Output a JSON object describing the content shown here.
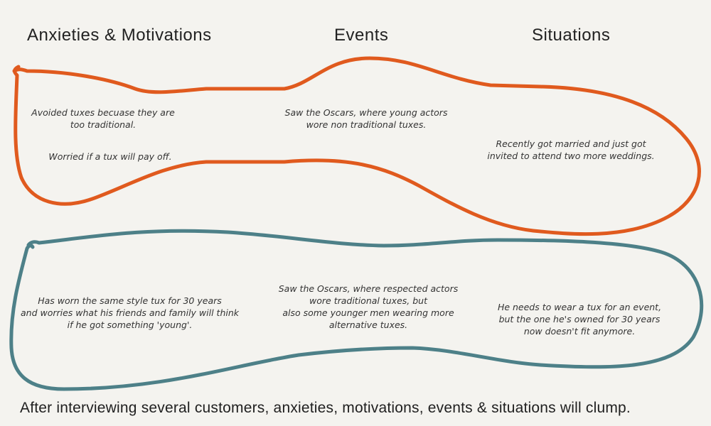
{
  "headers": {
    "anxieties": "Anxieties & Motivations",
    "events": "Events",
    "situations": "Situations"
  },
  "orange_cluster": {
    "color": "#e05a1e",
    "anxieties": {
      "line1": "Avoided tuxes becuase they are",
      "line2": "too traditional.",
      "line3": "Worried if a tux will pay off."
    },
    "events": {
      "line1": "Saw the Oscars, where young actors",
      "line2": "wore non traditional tuxes."
    },
    "situations": {
      "line1": "Recently got married and just got",
      "line2": "invited to attend two more weddings."
    }
  },
  "teal_cluster": {
    "color": "#4d8088",
    "anxieties": {
      "line1": "Has worn the same style tux for 30 years",
      "line2": "and worries what his friends and family will think",
      "line3": "if he got something 'young'."
    },
    "events": {
      "line1": "Saw the Oscars, where respected actors",
      "line2": "wore traditional tuxes, but",
      "line3": "also some younger men wearing more",
      "line4": "alternative tuxes."
    },
    "situations": {
      "line1": "He needs to wear a tux for an event,",
      "line2": "but the one he's owned for 30 years",
      "line3": "now doesn't fit anymore."
    }
  },
  "caption": "After interviewing several customers, anxieties, motivations, events & situations will clump."
}
